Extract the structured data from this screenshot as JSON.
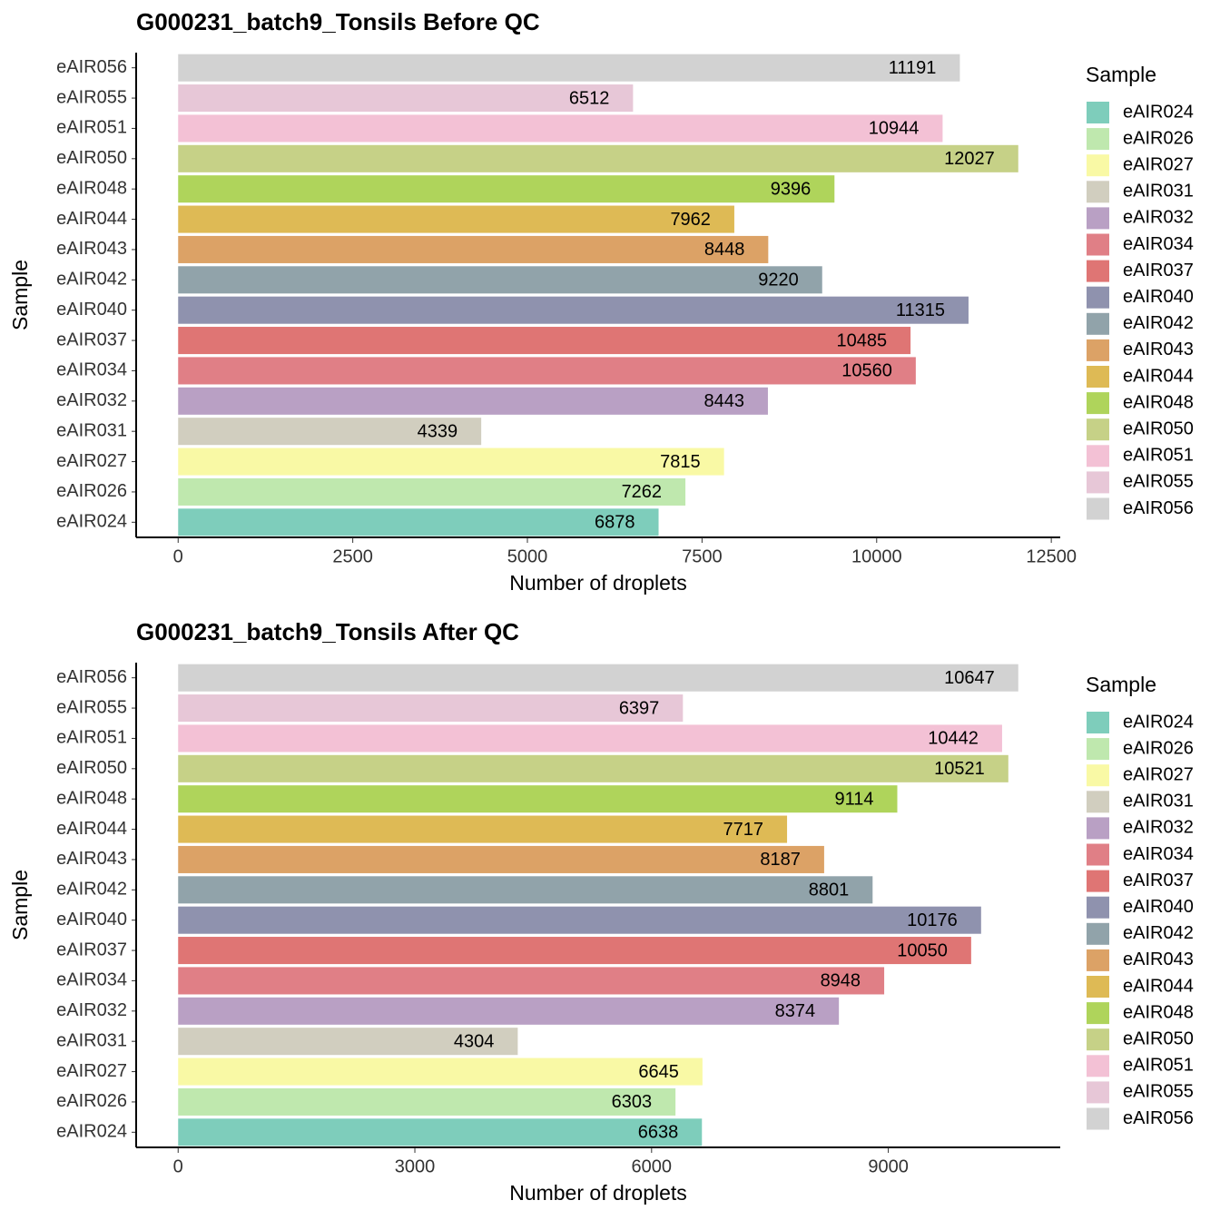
{
  "chart_data": [
    {
      "type": "bar",
      "orientation": "horizontal",
      "title": "G000231_batch9_Tonsils Before QC",
      "x_label": "Number of droplets",
      "y_label": "Sample",
      "legend_title": "Sample",
      "categories": [
        "eAIR024",
        "eAIR026",
        "eAIR027",
        "eAIR031",
        "eAIR032",
        "eAIR034",
        "eAIR037",
        "eAIR040",
        "eAIR042",
        "eAIR043",
        "eAIR044",
        "eAIR048",
        "eAIR050",
        "eAIR051",
        "eAIR055",
        "eAIR056"
      ],
      "values": [
        6878,
        7262,
        7815,
        4339,
        8443,
        10560,
        10485,
        11315,
        9220,
        8448,
        7962,
        9396,
        12027,
        10944,
        6512,
        11191
      ],
      "colors": [
        "#7ECDBB",
        "#BFE8AE",
        "#F9F9A5",
        "#D1CEBF",
        "#B9A0C4",
        "#E07F86",
        "#DF7574",
        "#8F92AE",
        "#91A3AA",
        "#DCA266",
        "#DEBA55",
        "#AFD45B",
        "#C6D187",
        "#F3C1D5",
        "#E7C7D7",
        "#D2D2D2"
      ],
      "xlim": [
        -601,
        12628
      ],
      "xticks": [
        0,
        2500,
        5000,
        7500,
        10000,
        12500
      ]
    },
    {
      "type": "bar",
      "orientation": "horizontal",
      "title": "G000231_batch9_Tonsils After QC",
      "x_label": "Number of droplets",
      "y_label": "Sample",
      "legend_title": "Sample",
      "categories": [
        "eAIR024",
        "eAIR026",
        "eAIR027",
        "eAIR031",
        "eAIR032",
        "eAIR034",
        "eAIR037",
        "eAIR040",
        "eAIR042",
        "eAIR043",
        "eAIR044",
        "eAIR048",
        "eAIR050",
        "eAIR051",
        "eAIR055",
        "eAIR056"
      ],
      "values": [
        6638,
        6303,
        6645,
        4304,
        8374,
        8948,
        10050,
        10176,
        8801,
        8187,
        7717,
        9114,
        10521,
        10442,
        6397,
        10647
      ],
      "colors": [
        "#7ECDBB",
        "#BFE8AE",
        "#F9F9A5",
        "#D1CEBF",
        "#B9A0C4",
        "#E07F86",
        "#DF7574",
        "#8F92AE",
        "#91A3AA",
        "#DCA266",
        "#DEBA55",
        "#AFD45B",
        "#C6D187",
        "#F3C1D5",
        "#E7C7D7",
        "#D2D2D2"
      ],
      "xlim": [
        -532,
        11179
      ],
      "xticks": [
        0,
        3000,
        6000,
        9000
      ]
    }
  ]
}
